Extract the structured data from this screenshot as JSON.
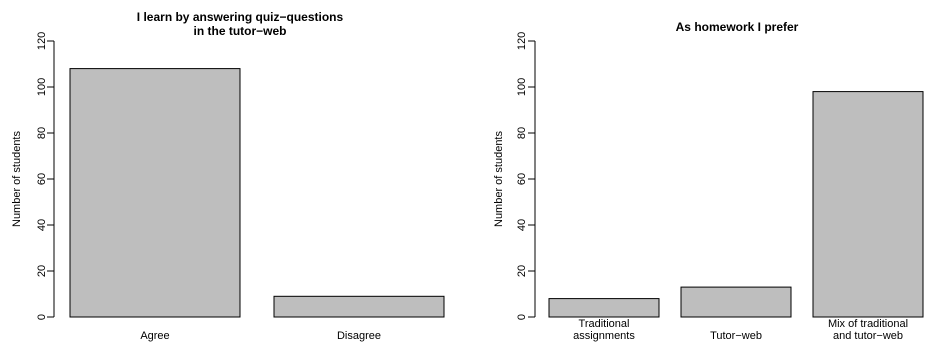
{
  "chart_data": [
    {
      "type": "bar",
      "title": [
        "I learn by answering quiz−questions",
        "in the tutor−web"
      ],
      "ylabel": "Number of students",
      "xlabel": "",
      "categories": [
        [
          "Agree"
        ],
        [
          "Disagree"
        ]
      ],
      "values": [
        108,
        9
      ],
      "ylim": [
        0,
        120
      ],
      "yticks": [
        0,
        20,
        40,
        60,
        80,
        100,
        120
      ],
      "grid": false,
      "bar_color": "#bebebe"
    },
    {
      "type": "bar",
      "title": [
        "As homework I prefer"
      ],
      "ylabel": "Number of students",
      "xlabel": "",
      "categories": [
        [
          "Traditional",
          "assignments"
        ],
        [
          "Tutor−web"
        ],
        [
          "Mix of traditional",
          "and tutor−web"
        ]
      ],
      "values": [
        8,
        13,
        98
      ],
      "ylim": [
        0,
        120
      ],
      "yticks": [
        0,
        20,
        40,
        60,
        80,
        100,
        120
      ],
      "grid": false,
      "bar_color": "#bebebe"
    }
  ]
}
